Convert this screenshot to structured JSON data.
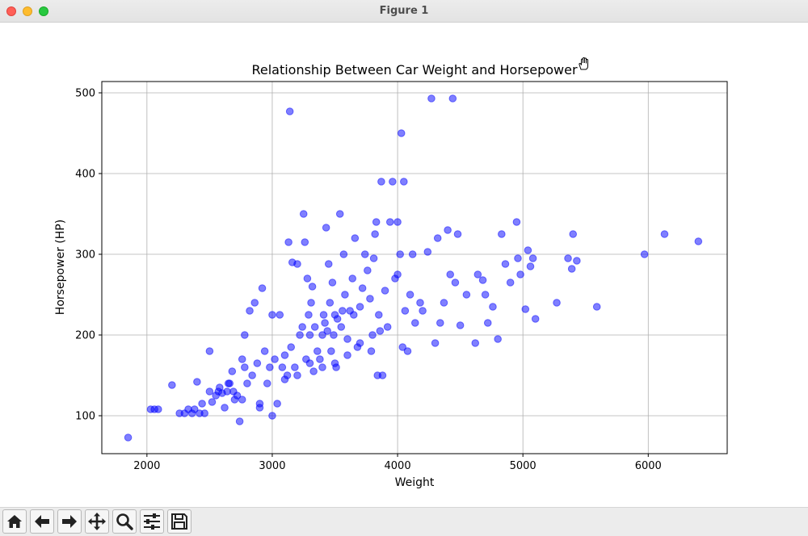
{
  "window": {
    "title": "Figure 1"
  },
  "toolbar": {
    "buttons": [
      {
        "name": "home-button",
        "icon": "home-icon"
      },
      {
        "name": "back-button",
        "icon": "arrow-left-icon"
      },
      {
        "name": "forward-button",
        "icon": "arrow-right-icon"
      },
      {
        "name": "pan-button",
        "icon": "move-icon"
      },
      {
        "name": "zoom-button",
        "icon": "magnifier-icon"
      },
      {
        "name": "configure-subplots-button",
        "icon": "sliders-icon"
      },
      {
        "name": "save-button",
        "icon": "floppy-disk-icon"
      }
    ]
  },
  "chart_data": {
    "type": "scatter",
    "title": "Relationship Between Car Weight and Horsepower",
    "xlabel": "Weight",
    "ylabel": "Horsepower (HP)",
    "xlim": [
      1640,
      6630
    ],
    "ylim": [
      53,
      514
    ],
    "xticks": [
      2000,
      3000,
      4000,
      5000,
      6000
    ],
    "yticks": [
      100,
      200,
      300,
      400,
      500
    ],
    "xtick_labels": [
      "2000",
      "3000",
      "4000",
      "5000",
      "6000"
    ],
    "ytick_labels": [
      "100",
      "200",
      "300",
      "400",
      "500"
    ],
    "grid": true,
    "marker_color": "#0000ff",
    "marker_alpha": 0.5,
    "points": [
      [
        1850,
        73
      ],
      [
        2030,
        108
      ],
      [
        2060,
        108
      ],
      [
        2090,
        108
      ],
      [
        2200,
        138
      ],
      [
        2260,
        103
      ],
      [
        2300,
        103
      ],
      [
        2330,
        108
      ],
      [
        2360,
        103
      ],
      [
        2380,
        108
      ],
      [
        2400,
        142
      ],
      [
        2420,
        103
      ],
      [
        2440,
        115
      ],
      [
        2460,
        103
      ],
      [
        2500,
        180
      ],
      [
        2500,
        130
      ],
      [
        2520,
        117
      ],
      [
        2550,
        125
      ],
      [
        2570,
        130
      ],
      [
        2580,
        135
      ],
      [
        2600,
        128
      ],
      [
        2620,
        110
      ],
      [
        2640,
        130
      ],
      [
        2650,
        140
      ],
      [
        2660,
        140
      ],
      [
        2680,
        155
      ],
      [
        2690,
        130
      ],
      [
        2700,
        120
      ],
      [
        2720,
        125
      ],
      [
        2740,
        93
      ],
      [
        2760,
        120
      ],
      [
        2760,
        170
      ],
      [
        2780,
        200
      ],
      [
        2780,
        160
      ],
      [
        2800,
        140
      ],
      [
        2820,
        230
      ],
      [
        2840,
        150
      ],
      [
        2860,
        240
      ],
      [
        2880,
        165
      ],
      [
        2900,
        110
      ],
      [
        2900,
        115
      ],
      [
        2920,
        258
      ],
      [
        2940,
        180
      ],
      [
        2960,
        140
      ],
      [
        2980,
        160
      ],
      [
        3000,
        225
      ],
      [
        3000,
        100
      ],
      [
        3020,
        170
      ],
      [
        3040,
        115
      ],
      [
        3060,
        225
      ],
      [
        3080,
        160
      ],
      [
        3100,
        145
      ],
      [
        3100,
        175
      ],
      [
        3120,
        150
      ],
      [
        3130,
        315
      ],
      [
        3140,
        477
      ],
      [
        3150,
        185
      ],
      [
        3160,
        290
      ],
      [
        3180,
        160
      ],
      [
        3200,
        288
      ],
      [
        3200,
        150
      ],
      [
        3220,
        200
      ],
      [
        3240,
        210
      ],
      [
        3250,
        350
      ],
      [
        3260,
        315
      ],
      [
        3270,
        170
      ],
      [
        3280,
        270
      ],
      [
        3290,
        225
      ],
      [
        3300,
        200
      ],
      [
        3300,
        165
      ],
      [
        3310,
        240
      ],
      [
        3320,
        260
      ],
      [
        3330,
        155
      ],
      [
        3340,
        210
      ],
      [
        3360,
        180
      ],
      [
        3380,
        170
      ],
      [
        3400,
        160
      ],
      [
        3400,
        200
      ],
      [
        3410,
        225
      ],
      [
        3420,
        215
      ],
      [
        3430,
        333
      ],
      [
        3440,
        205
      ],
      [
        3450,
        288
      ],
      [
        3460,
        240
      ],
      [
        3470,
        180
      ],
      [
        3480,
        265
      ],
      [
        3490,
        200
      ],
      [
        3500,
        225
      ],
      [
        3500,
        165
      ],
      [
        3510,
        160
      ],
      [
        3520,
        220
      ],
      [
        3540,
        350
      ],
      [
        3550,
        210
      ],
      [
        3560,
        230
      ],
      [
        3570,
        300
      ],
      [
        3580,
        250
      ],
      [
        3600,
        195
      ],
      [
        3600,
        175
      ],
      [
        3620,
        230
      ],
      [
        3640,
        270
      ],
      [
        3650,
        225
      ],
      [
        3660,
        320
      ],
      [
        3680,
        185
      ],
      [
        3700,
        235
      ],
      [
        3700,
        190
      ],
      [
        3720,
        258
      ],
      [
        3740,
        300
      ],
      [
        3760,
        280
      ],
      [
        3780,
        245
      ],
      [
        3790,
        180
      ],
      [
        3800,
        200
      ],
      [
        3810,
        295
      ],
      [
        3820,
        325
      ],
      [
        3830,
        340
      ],
      [
        3840,
        150
      ],
      [
        3850,
        225
      ],
      [
        3860,
        205
      ],
      [
        3870,
        390
      ],
      [
        3880,
        150
      ],
      [
        3900,
        255
      ],
      [
        3920,
        210
      ],
      [
        3940,
        340
      ],
      [
        3960,
        390
      ],
      [
        3980,
        270
      ],
      [
        4000,
        275
      ],
      [
        4000,
        340
      ],
      [
        4020,
        300
      ],
      [
        4030,
        450
      ],
      [
        4040,
        185
      ],
      [
        4050,
        390
      ],
      [
        4060,
        230
      ],
      [
        4080,
        180
      ],
      [
        4100,
        250
      ],
      [
        4120,
        300
      ],
      [
        4140,
        215
      ],
      [
        4180,
        240
      ],
      [
        4200,
        230
      ],
      [
        4240,
        303
      ],
      [
        4270,
        493
      ],
      [
        4300,
        190
      ],
      [
        4320,
        320
      ],
      [
        4340,
        215
      ],
      [
        4370,
        240
      ],
      [
        4400,
        330
      ],
      [
        4420,
        275
      ],
      [
        4440,
        493
      ],
      [
        4460,
        265
      ],
      [
        4480,
        325
      ],
      [
        4500,
        212
      ],
      [
        4550,
        250
      ],
      [
        4620,
        190
      ],
      [
        4640,
        275
      ],
      [
        4680,
        268
      ],
      [
        4700,
        250
      ],
      [
        4720,
        215
      ],
      [
        4760,
        235
      ],
      [
        4800,
        195
      ],
      [
        4830,
        325
      ],
      [
        4860,
        288
      ],
      [
        4900,
        265
      ],
      [
        4950,
        340
      ],
      [
        4960,
        295
      ],
      [
        4980,
        275
      ],
      [
        5020,
        232
      ],
      [
        5040,
        305
      ],
      [
        5060,
        285
      ],
      [
        5080,
        295
      ],
      [
        5100,
        220
      ],
      [
        5270,
        240
      ],
      [
        5360,
        295
      ],
      [
        5390,
        282
      ],
      [
        5400,
        325
      ],
      [
        5430,
        292
      ],
      [
        5590,
        235
      ],
      [
        5970,
        300
      ],
      [
        6130,
        325
      ],
      [
        6400,
        316
      ]
    ]
  }
}
